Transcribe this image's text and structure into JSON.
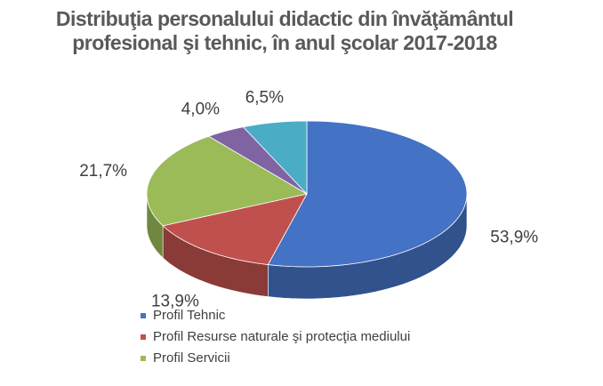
{
  "chart_data": {
    "type": "pie3d",
    "title": "Distribuţia personalului didactic din învăţământul profesional şi tehnic, în anul şcolar 2017-2018",
    "categories": [
      "Profil Tehnic",
      "Profil Resurse naturale şi protecţia mediului",
      "Profil Servicii",
      null,
      null
    ],
    "values": [
      53.9,
      13.9,
      21.7,
      4.0,
      6.5
    ],
    "value_labels": [
      "53,9%",
      "13,9%",
      "21,7%",
      "4,0%",
      "6,5%"
    ],
    "colors": [
      "#4472c4",
      "#c0504d",
      "#9bbb59",
      "#8064a2",
      "#4bacc6"
    ]
  }
}
